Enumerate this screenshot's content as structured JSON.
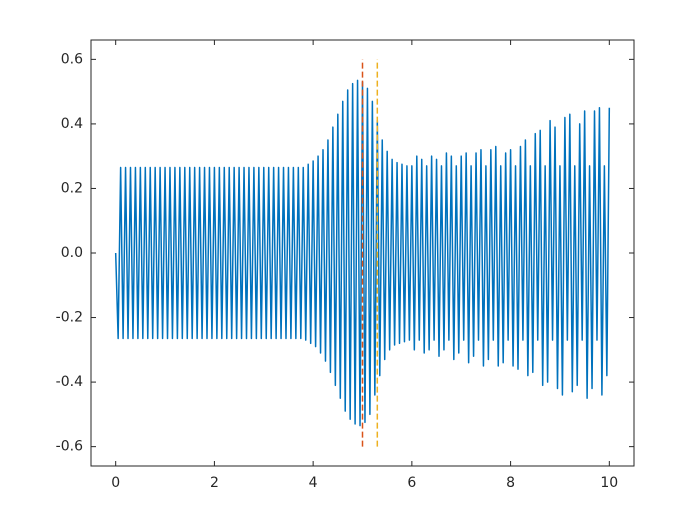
{
  "chart_data": {
    "type": "line",
    "xlim": [
      -0.5,
      10.5
    ],
    "ylim": [
      -0.66,
      0.66
    ],
    "xticks": [
      0,
      2,
      4,
      6,
      8,
      10
    ],
    "yticks": [
      -0.6,
      -0.4,
      -0.2,
      {
        "value": 0,
        "label": "0.0"
      },
      0.2,
      0.4,
      0.6
    ],
    "grid": false,
    "series": [
      {
        "color": "#0072BD",
        "x": [
          0,
          0.05,
          0.1,
          0.15,
          0.2,
          0.25,
          0.3,
          0.35,
          0.4,
          0.45,
          0.5,
          0.55,
          0.6,
          0.65,
          0.7,
          0.75,
          0.8,
          0.85,
          0.9,
          0.95,
          1,
          1.05,
          1.1,
          1.15,
          1.2,
          1.25,
          1.3,
          1.35,
          1.4,
          1.45,
          1.5,
          1.55,
          1.6,
          1.65,
          1.7,
          1.75,
          1.8,
          1.85,
          1.9,
          1.95,
          2,
          2.05,
          2.1,
          2.15,
          2.2,
          2.25,
          2.3,
          2.35,
          2.4,
          2.45,
          2.5,
          2.55,
          2.6,
          2.65,
          2.7,
          2.75,
          2.8,
          2.85,
          2.9,
          2.95,
          3,
          3.05,
          3.1,
          3.15,
          3.2,
          3.25,
          3.3,
          3.35,
          3.4,
          3.45,
          3.5,
          3.55,
          3.6,
          3.65,
          3.7,
          3.75,
          3.8,
          3.85,
          3.9,
          3.95,
          4,
          4.05,
          4.1,
          4.15,
          4.2,
          4.25,
          4.3,
          4.35,
          4.4,
          4.45,
          4.5,
          4.55,
          4.6,
          4.65,
          4.7,
          4.75,
          4.8,
          4.85,
          4.9,
          4.95,
          5,
          5.05,
          5.1,
          5.15,
          5.2,
          5.25,
          5.3,
          5.35,
          5.4,
          5.45,
          5.5,
          5.55,
          5.6,
          5.65,
          5.7,
          5.75,
          5.8,
          5.85,
          5.9,
          5.95,
          6,
          6.05,
          6.1,
          6.15,
          6.2,
          6.25,
          6.3,
          6.35,
          6.4,
          6.45,
          6.5,
          6.55,
          6.6,
          6.65,
          6.7,
          6.75,
          6.8,
          6.85,
          6.9,
          6.95,
          7,
          7.05,
          7.1,
          7.15,
          7.2,
          7.25,
          7.3,
          7.35,
          7.4,
          7.45,
          7.5,
          7.55,
          7.6,
          7.65,
          7.7,
          7.75,
          7.8,
          7.85,
          7.9,
          7.95,
          8,
          8.05,
          8.1,
          8.15,
          8.2,
          8.25,
          8.3,
          8.35,
          8.4,
          8.45,
          8.5,
          8.55,
          8.6,
          8.65,
          8.7,
          8.75,
          8.8,
          8.85,
          8.9,
          8.95,
          9,
          9.05,
          9.1,
          9.15,
          9.2,
          9.25,
          9.3,
          9.35,
          9.4,
          9.45,
          9.5,
          9.55,
          9.6,
          9.65,
          9.7,
          9.75,
          9.8,
          9.85,
          9.9,
          9.95,
          10
        ],
        "values": [
          0,
          -0.265,
          0.265,
          -0.265,
          0.265,
          -0.265,
          0.265,
          -0.265,
          0.265,
          -0.265,
          0.265,
          -0.265,
          0.265,
          -0.265,
          0.265,
          -0.265,
          0.265,
          -0.265,
          0.265,
          -0.265,
          0.265,
          -0.265,
          0.265,
          -0.265,
          0.265,
          -0.265,
          0.265,
          -0.265,
          0.265,
          -0.265,
          0.265,
          -0.265,
          0.265,
          -0.265,
          0.265,
          -0.265,
          0.265,
          -0.265,
          0.265,
          -0.265,
          0.265,
          -0.265,
          0.265,
          -0.265,
          0.265,
          -0.265,
          0.265,
          -0.265,
          0.265,
          -0.265,
          0.265,
          -0.265,
          0.265,
          -0.265,
          0.265,
          -0.265,
          0.265,
          -0.265,
          0.265,
          -0.265,
          0.265,
          -0.265,
          0.265,
          -0.265,
          0.265,
          -0.265,
          0.265,
          -0.265,
          0.265,
          -0.265,
          0.265,
          -0.265,
          0.265,
          -0.265,
          0.265,
          -0.265,
          0.265,
          -0.27,
          0.275,
          -0.28,
          0.285,
          -0.29,
          0.3,
          -0.31,
          0.32,
          -0.335,
          0.35,
          -0.37,
          0.39,
          -0.41,
          0.43,
          -0.45,
          0.47,
          -0.49,
          0.505,
          -0.515,
          0.525,
          -0.53,
          0.535,
          -0.535,
          0.53,
          -0.525,
          0.51,
          -0.5,
          0.47,
          -0.44,
          0.41,
          -0.38,
          0.35,
          -0.33,
          0.315,
          -0.3,
          0.29,
          -0.285,
          0.28,
          -0.28,
          0.275,
          -0.275,
          0.27,
          -0.27,
          0.27,
          -0.3,
          0.3,
          -0.27,
          0.29,
          -0.31,
          0.27,
          -0.3,
          0.3,
          -0.27,
          0.29,
          -0.32,
          0.27,
          -0.3,
          0.31,
          -0.27,
          0.3,
          -0.33,
          0.27,
          -0.31,
          0.3,
          -0.27,
          0.31,
          -0.34,
          0.27,
          -0.32,
          0.31,
          -0.27,
          0.32,
          -0.35,
          0.27,
          -0.33,
          0.32,
          -0.27,
          0.33,
          -0.35,
          0.27,
          -0.34,
          0.31,
          -0.27,
          0.32,
          -0.35,
          0.27,
          -0.36,
          0.33,
          -0.27,
          0.35,
          -0.38,
          0.27,
          -0.37,
          0.37,
          -0.27,
          0.38,
          -0.41,
          0.27,
          -0.4,
          0.41,
          -0.27,
          0.39,
          -0.42,
          0.27,
          -0.44,
          0.42,
          -0.27,
          0.43,
          -0.43,
          0.27,
          -0.41,
          0.4,
          -0.27,
          0.44,
          -0.45,
          0.27,
          -0.42,
          0.44,
          -0.27,
          0.45,
          -0.44,
          0.27,
          -0.38,
          0.45
        ]
      }
    ],
    "reference_lines": [
      {
        "x": 5,
        "y": [
          -0.6,
          0.6
        ],
        "color": "#D95319"
      },
      {
        "x": 5.3,
        "y": [
          -0.6,
          0.6
        ],
        "color": "#EDB120"
      }
    ]
  }
}
